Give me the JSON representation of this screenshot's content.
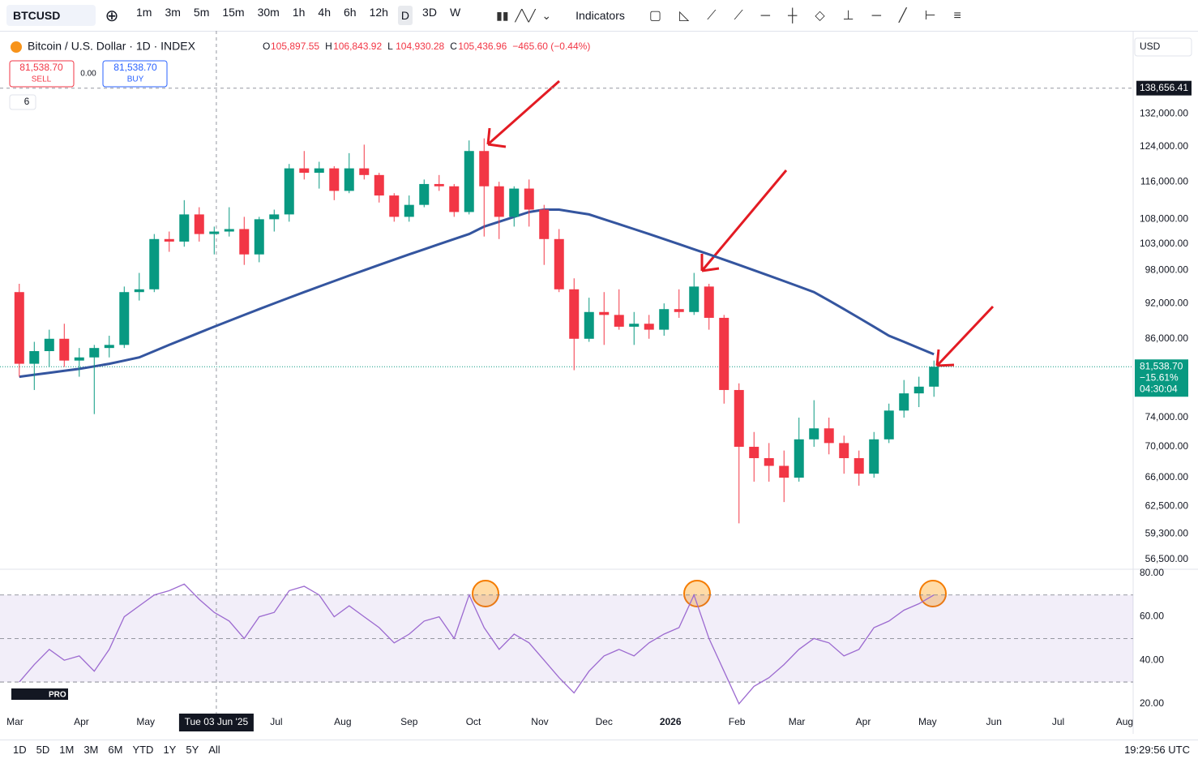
{
  "toolbar": {
    "symbol": "BTCUSD",
    "timeframes": [
      "1m",
      "3m",
      "5m",
      "15m",
      "30m",
      "1h",
      "4h",
      "6h",
      "12h",
      "D",
      "3D",
      "W"
    ],
    "indicators": "Indicators"
  },
  "header": {
    "title": "Bitcoin / U.S. Dollar · 1D · INDEX",
    "ohlc": [
      [
        "O",
        "105,897.55"
      ],
      [
        "H",
        "106,843.92"
      ],
      [
        "L",
        "104,930.28"
      ],
      [
        "C",
        "105,436.96"
      ]
    ],
    "change": "−465.60 (−0.44%)",
    "sell_price": "81,538.70",
    "sell": "SELL",
    "spread": "0.00",
    "buy_price": "81,538.70",
    "buy": "BUY",
    "indicator_count": "6",
    "currency": "USD"
  },
  "chart_data": {
    "type": "candlestick",
    "log_scale": true,
    "grid": false,
    "up_color": "#089981",
    "down_color": "#f23645",
    "x": [
      "2025-03-03",
      "2025-03-10",
      "2025-03-17",
      "2025-03-24",
      "2025-03-31",
      "2025-04-07",
      "2025-04-14",
      "2025-04-21",
      "2025-04-28",
      "2025-05-05",
      "2025-05-12",
      "2025-05-19",
      "2025-05-26",
      "2025-06-02",
      "2025-06-09",
      "2025-06-16",
      "2025-06-23",
      "2025-06-30",
      "2025-07-07",
      "2025-07-14",
      "2025-07-21",
      "2025-07-28",
      "2025-08-04",
      "2025-08-11",
      "2025-08-18",
      "2025-08-25",
      "2025-09-01",
      "2025-09-08",
      "2025-09-15",
      "2025-09-22",
      "2025-09-29",
      "2025-10-06",
      "2025-10-13",
      "2025-10-20",
      "2025-10-27",
      "2025-11-03",
      "2025-11-10",
      "2025-11-17",
      "2025-11-24",
      "2025-12-01",
      "2025-12-08",
      "2025-12-15",
      "2025-12-22",
      "2025-12-29",
      "2026-01-05",
      "2026-01-12",
      "2026-01-19",
      "2026-01-26",
      "2026-02-02",
      "2026-02-09",
      "2026-02-16",
      "2026-02-23",
      "2026-03-02",
      "2026-03-09",
      "2026-03-16",
      "2026-03-23",
      "2026-03-30",
      "2026-04-06",
      "2026-04-13",
      "2026-04-20",
      "2026-04-27",
      "2026-05-04"
    ],
    "ohlc": [
      [
        94000,
        95500,
        80000,
        82000
      ],
      [
        82000,
        85500,
        78000,
        84000
      ],
      [
        84000,
        87500,
        81500,
        86000
      ],
      [
        86000,
        88500,
        81500,
        82500
      ],
      [
        82500,
        84500,
        80000,
        83000
      ],
      [
        83000,
        85000,
        74500,
        84500
      ],
      [
        84500,
        86500,
        83000,
        85000
      ],
      [
        85000,
        95000,
        84500,
        94000
      ],
      [
        94000,
        97500,
        92500,
        94500
      ],
      [
        94500,
        105000,
        94000,
        104000
      ],
      [
        104000,
        105500,
        101500,
        103500
      ],
      [
        103500,
        112000,
        102500,
        109000
      ],
      [
        109000,
        110500,
        103500,
        105000
      ],
      [
        105000,
        106500,
        101000,
        105500
      ],
      [
        105500,
        110500,
        104500,
        106000
      ],
      [
        106000,
        108500,
        99000,
        101000
      ],
      [
        101000,
        108500,
        99500,
        108000
      ],
      [
        108000,
        110000,
        105500,
        109000
      ],
      [
        109000,
        120000,
        107500,
        119000
      ],
      [
        119000,
        123000,
        116500,
        118000
      ],
      [
        118000,
        120500,
        114500,
        119000
      ],
      [
        119000,
        119500,
        112000,
        114000
      ],
      [
        114000,
        122500,
        113500,
        119000
      ],
      [
        119000,
        124500,
        116500,
        117500
      ],
      [
        117500,
        118000,
        111500,
        113000
      ],
      [
        113000,
        113500,
        107500,
        108500
      ],
      [
        108500,
        113000,
        107500,
        111000
      ],
      [
        111000,
        116500,
        110500,
        115500
      ],
      [
        115500,
        117500,
        114000,
        115000
      ],
      [
        115000,
        115500,
        108500,
        109500
      ],
      [
        109500,
        125500,
        109000,
        123000
      ],
      [
        123000,
        126000,
        104500,
        115000
      ],
      [
        115000,
        116000,
        104000,
        108500
      ],
      [
        108500,
        115000,
        106500,
        114500
      ],
      [
        114500,
        116500,
        106500,
        110000
      ],
      [
        110000,
        111000,
        99000,
        104000
      ],
      [
        104000,
        106000,
        94000,
        94500
      ],
      [
        94500,
        96500,
        81000,
        86000
      ],
      [
        86000,
        93000,
        85500,
        90500
      ],
      [
        90500,
        94000,
        85000,
        90000
      ],
      [
        90000,
        94500,
        87500,
        88000
      ],
      [
        88000,
        90500,
        85000,
        88500
      ],
      [
        88500,
        90000,
        86000,
        87500
      ],
      [
        87500,
        92000,
        86500,
        91000
      ],
      [
        91000,
        94500,
        89500,
        90500
      ],
      [
        90500,
        97500,
        90000,
        95000
      ],
      [
        95000,
        95500,
        87500,
        89500
      ],
      [
        89500,
        90000,
        76000,
        78000
      ],
      [
        78000,
        79000,
        60500,
        70000
      ],
      [
        70000,
        72000,
        65500,
        68500
      ],
      [
        68500,
        70500,
        65500,
        67500
      ],
      [
        67500,
        69500,
        63000,
        66000
      ],
      [
        66000,
        74000,
        65500,
        71000
      ],
      [
        71000,
        76500,
        70000,
        72500
      ],
      [
        72500,
        74000,
        69000,
        70500
      ],
      [
        70500,
        71500,
        66500,
        68500
      ],
      [
        68500,
        69500,
        65000,
        66500
      ],
      [
        66500,
        72000,
        66000,
        71000
      ],
      [
        71000,
        76000,
        70500,
        75000
      ],
      [
        75000,
        79500,
        74000,
        77500
      ],
      [
        77500,
        80000,
        75500,
        78500
      ],
      [
        78500,
        82500,
        77000,
        81538.7
      ]
    ],
    "ma": {
      "color": "#34559f",
      "values": [
        80000,
        80300,
        80600,
        80900,
        81200,
        81600,
        82000,
        82500,
        83000,
        84000,
        85000,
        86000,
        87000,
        88000,
        89000,
        90000,
        91000,
        92000,
        93000,
        94000,
        95000,
        96000,
        97000,
        98000,
        99000,
        100000,
        101000,
        102000,
        103000,
        104000,
        105000,
        106500,
        107500,
        108500,
        109500,
        110000,
        110000,
        109500,
        109000,
        108000,
        107000,
        106000,
        105000,
        104000,
        103000,
        102000,
        101000,
        100000,
        99000,
        98000,
        97000,
        96000,
        95000,
        94000,
        92500,
        91000,
        89500,
        88000,
        86500,
        85500,
        84500,
        83500
      ]
    },
    "xlim": [
      "2025-02-22",
      "2026-08-05"
    ],
    "xticks": [
      {
        "value": "2025-03-01",
        "label": "Mar"
      },
      {
        "value": "2025-04-01",
        "label": "Apr"
      },
      {
        "value": "2025-05-01",
        "label": "May"
      },
      {
        "value": "2025-07-01",
        "label": "Jul"
      },
      {
        "value": "2025-08-01",
        "label": "Aug"
      },
      {
        "value": "2025-09-01",
        "label": "Sep"
      },
      {
        "value": "2025-10-01",
        "label": "Oct"
      },
      {
        "value": "2025-11-01",
        "label": "Nov"
      },
      {
        "value": "2025-12-01",
        "label": "Dec"
      },
      {
        "value": "2026-01-01",
        "label": "2026"
      },
      {
        "value": "2026-02-01",
        "label": "Feb"
      },
      {
        "value": "2026-03-01",
        "label": "Mar"
      },
      {
        "value": "2026-04-01",
        "label": "Apr"
      },
      {
        "value": "2026-05-01",
        "label": "May"
      },
      {
        "value": "2026-06-01",
        "label": "Jun"
      },
      {
        "value": "2026-07-01",
        "label": "Jul"
      },
      {
        "value": "2026-08-01",
        "label": "Aug"
      }
    ],
    "ylim": [
      55600,
      153000
    ],
    "yticks": [
      {
        "value": 56500,
        "label": "56,500.00"
      },
      {
        "value": 59300,
        "label": "59,300.00"
      },
      {
        "value": 62500,
        "label": "62,500.00"
      },
      {
        "value": 66000,
        "label": "66,000.00"
      },
      {
        "value": 70000,
        "label": "70,000.00"
      },
      {
        "value": 74000,
        "label": "74,000.00"
      },
      {
        "value": 86000,
        "label": "86,000.00"
      },
      {
        "value": 92000,
        "label": "92,000.00"
      },
      {
        "value": 98000,
        "label": "98,000.00"
      },
      {
        "value": 103000,
        "label": "103,000.00"
      },
      {
        "value": 108000,
        "label": "108,000.00"
      },
      {
        "value": 116000,
        "label": "116,000.00"
      },
      {
        "value": 124000,
        "label": "124,000.00"
      },
      {
        "value": 132000,
        "label": "132,000.00"
      }
    ],
    "last_price": {
      "value": 81538.7,
      "label": "81,538.70",
      "change": "−15.61%",
      "countdown": "04:30:04"
    },
    "crosshair": {
      "x": "2025-06-03",
      "x_label": "Tue 03 Jun '25",
      "price": {
        "value": 138656.41,
        "label": "138,656.41"
      }
    },
    "rsi": {
      "color": "#9c6ad0",
      "ylim": [
        15.5,
        80.7
      ],
      "levels": [
        30,
        50,
        70
      ],
      "yticks": [
        {
          "value": 20,
          "label": "20.00"
        },
        {
          "value": 40,
          "label": "40.00"
        },
        {
          "value": 60,
          "label": "60.00"
        },
        {
          "value": 80,
          "label": "80.00"
        }
      ],
      "values": [
        30,
        38,
        45,
        40,
        42,
        35,
        45,
        60,
        65,
        70,
        72,
        75,
        68,
        62,
        58,
        50,
        60,
        62,
        72,
        74,
        70,
        60,
        65,
        60,
        55,
        48,
        52,
        58,
        60,
        50,
        70,
        55,
        45,
        52,
        48,
        40,
        32,
        25,
        35,
        42,
        45,
        42,
        48,
        52,
        55,
        70,
        50,
        35,
        20,
        28,
        32,
        38,
        45,
        50,
        48,
        42,
        45,
        55,
        58,
        63,
        66,
        70
      ]
    }
  },
  "footer": {
    "ranges": [
      "1D",
      "5D",
      "1M",
      "3M",
      "6M",
      "YTD",
      "1Y",
      "5Y",
      "All"
    ],
    "time": "19:29:56 UTC",
    "logo": "PRO"
  }
}
